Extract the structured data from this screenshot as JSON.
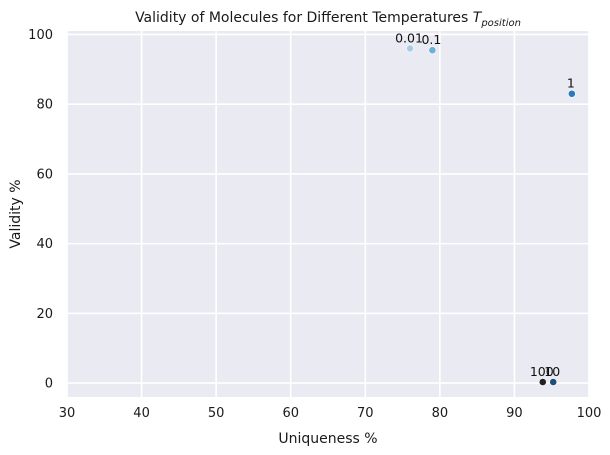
{
  "chart_data": {
    "type": "scatter",
    "title": "Validity of Molecules for Different Temperatures ",
    "title_math_main": "T",
    "title_math_sub": "position",
    "xlabel": "Uniqueness %",
    "ylabel": "Validity %",
    "xlim": [
      30,
      100
    ],
    "ylim": [
      -4,
      101
    ],
    "xticks": [
      30,
      40,
      50,
      60,
      70,
      80,
      90,
      100
    ],
    "yticks": [
      0,
      20,
      40,
      60,
      80,
      100
    ],
    "grid": true,
    "background_color": "#eaeaf2",
    "grid_color": "#ffffff",
    "points": [
      {
        "label": "0.01",
        "x": 76.0,
        "y": 96.0,
        "color": "#a6cee3"
      },
      {
        "label": "0.1",
        "x": 79.0,
        "y": 95.5,
        "color": "#6baed6"
      },
      {
        "label": "1",
        "x": 97.7,
        "y": 83.0,
        "color": "#2b7bba"
      },
      {
        "label": "10",
        "x": 95.2,
        "y": 0.3,
        "color": "#1f4e79"
      },
      {
        "label": "100",
        "x": 93.8,
        "y": 0.3,
        "color": "#222222"
      }
    ]
  }
}
